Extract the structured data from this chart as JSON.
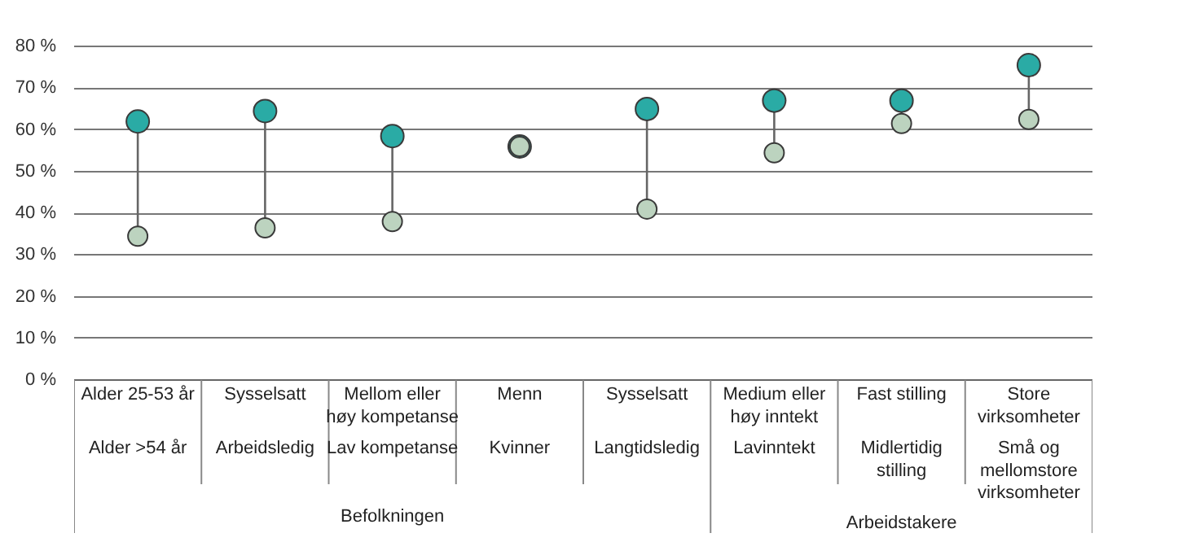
{
  "chart_data": {
    "type": "scatter",
    "categories": [
      "Alder 25-53 år",
      "Sysselsatt",
      "Mellom eller\nhøy kompetanse",
      "Menn",
      "Sysselsatt",
      "Medium eller\nhøy inntekt",
      "Fast stilling",
      "Store\nvirksomheter"
    ],
    "series": [
      {
        "color": "#2aaba5",
        "values": [
          62,
          64.5,
          58.5,
          56,
          65,
          67,
          67,
          75.5
        ]
      },
      {
        "color": "#bcd3bf",
        "values": [
          34.5,
          36.5,
          38,
          56,
          41,
          54.5,
          61.5,
          62.5
        ]
      }
    ],
    "annotations": [
      "Alder >54 år",
      "Arbeidsledig",
      "Lav kompetanse",
      "Kvinner",
      "Langtidsledig",
      "Lavinntekt",
      "Midlertidig\nstilling",
      "Små og\nmellomstore\nvirksomheter",
      "Befolkningen",
      "Arbeidstakere"
    ],
    "ylim": [
      0,
      80
    ],
    "yticks": [
      {
        "value": 0,
        "label": "0 %"
      },
      {
        "value": 10,
        "label": "10 %"
      },
      {
        "value": 20,
        "label": "20 %"
      },
      {
        "value": 30,
        "label": "30 %"
      },
      {
        "value": 40,
        "label": "40 %"
      },
      {
        "value": 50,
        "label": "50 %"
      },
      {
        "value": 60,
        "label": "60 %"
      },
      {
        "value": 70,
        "label": "70 %"
      },
      {
        "value": 80,
        "label": "80 %"
      }
    ],
    "grid": "y",
    "marker": "circle"
  }
}
